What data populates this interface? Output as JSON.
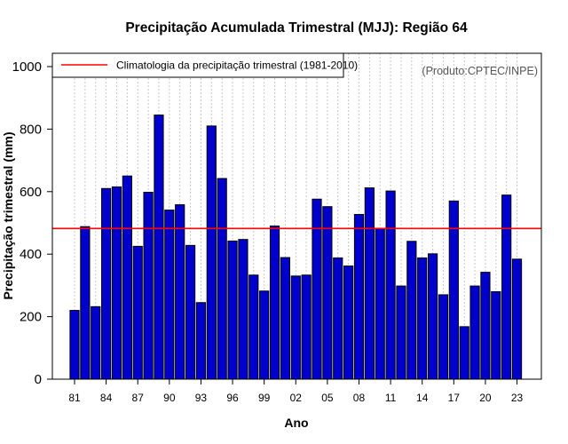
{
  "chart_data": {
    "type": "bar",
    "title": "Precipitação Acumulada Trimestral (MJJ): Região 64",
    "xlabel": "Ano",
    "ylabel": "Precipitação trimestral (mm)",
    "credit": "(Produto:CPTEC/INPE)",
    "ylim": [
      0,
      1050
    ],
    "yticks": [
      "0",
      "200",
      "400",
      "600",
      "800",
      "1000"
    ],
    "ytick_values": [
      0,
      200,
      400,
      600,
      800,
      1000
    ],
    "xtick_labels": [
      "81",
      "84",
      "87",
      "90",
      "93",
      "96",
      "99",
      "02",
      "05",
      "08",
      "11",
      "14",
      "17",
      "20",
      "23"
    ],
    "xtick_indices": [
      0,
      3,
      6,
      9,
      12,
      15,
      18,
      21,
      24,
      27,
      30,
      33,
      36,
      39,
      42
    ],
    "categories": [
      "1981",
      "1982",
      "1983",
      "1984",
      "1985",
      "1986",
      "1987",
      "1988",
      "1989",
      "1990",
      "1991",
      "1992",
      "1993",
      "1994",
      "1995",
      "1996",
      "1997",
      "1998",
      "1999",
      "2000",
      "2001",
      "2002",
      "2003",
      "2004",
      "2005",
      "2006",
      "2007",
      "2008",
      "2009",
      "2010",
      "2011",
      "2012",
      "2013",
      "2014",
      "2015",
      "2016",
      "2017",
      "2018",
      "2019",
      "2020",
      "2021",
      "2022",
      "2023"
    ],
    "values": [
      220,
      488,
      232,
      610,
      615,
      650,
      425,
      598,
      845,
      541,
      558,
      428,
      245,
      810,
      642,
      442,
      447,
      333,
      282,
      490,
      389,
      330,
      333,
      576,
      552,
      388,
      362,
      527,
      612,
      482,
      602,
      298,
      441,
      388,
      401,
      270,
      570,
      168,
      298,
      342,
      280,
      589,
      384
    ],
    "climatology": {
      "label": "Climatologia da precipitação trimestral (1981-2010)",
      "value": 482,
      "color": "#ff0000"
    },
    "bar_color": "#0000cd",
    "legend_position": "top-left",
    "grid": "vertical dotted"
  }
}
